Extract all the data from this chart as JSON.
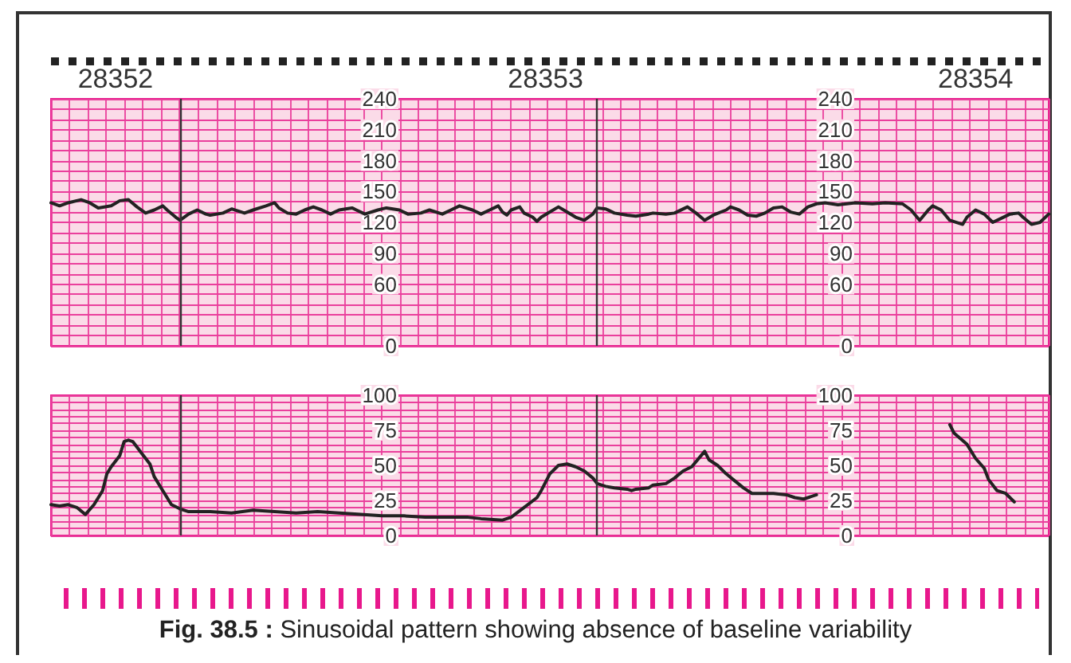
{
  "chart_data": [
    {
      "type": "line",
      "xlim": [
        28351.85,
        28354.17
      ],
      "xticks": [
        28352,
        28353,
        28354
      ],
      "ylim": [
        0,
        240
      ],
      "yticks": [
        0,
        60,
        90,
        120,
        150,
        180,
        210,
        240
      ],
      "y2lim": [
        0,
        240
      ],
      "y2ticks": [
        0,
        60,
        90,
        120,
        150,
        180,
        210,
        240
      ],
      "grid": true,
      "marker": "none",
      "x": [
        28351.85,
        28351.87,
        28351.89,
        28351.92,
        28351.94,
        28351.96,
        28351.99,
        28352.01,
        28352.03,
        28352.05,
        28352.07,
        28352.09,
        28352.11,
        28352.12,
        28352.14,
        28352.15,
        28352.17,
        28352.19,
        28352.21,
        28352.22,
        28352.25,
        28352.27,
        28352.3,
        28352.32,
        28352.35,
        28352.37,
        28352.38,
        28352.4,
        28352.42,
        28352.44,
        28352.46,
        28352.48,
        28352.5,
        28352.52,
        28352.55,
        28352.56,
        28352.58,
        28352.61,
        28352.63,
        28352.66,
        28352.68,
        28352.71,
        28352.73,
        28352.76,
        28352.78,
        28352.8,
        28352.83,
        28352.85,
        28352.87,
        28352.89,
        28352.9,
        28352.91,
        28352.92,
        28352.94,
        28352.95,
        28352.97,
        28352.98,
        28352.99,
        28353.01,
        28353.03,
        28353.05,
        28353.07,
        28353.09,
        28353.11,
        28353.12,
        28353.14,
        28353.16,
        28353.19,
        28353.21,
        28353.24,
        28353.25,
        28353.28,
        28353.3,
        28353.33,
        28353.35,
        28353.37,
        28353.39,
        28353.42,
        28353.43,
        28353.45,
        28353.47,
        28353.49,
        28353.51,
        28353.53,
        28353.55,
        28353.57,
        28353.59,
        28353.61,
        28353.63,
        28353.65,
        28353.68,
        28353.72,
        28353.76,
        28353.79,
        28353.83,
        28353.85,
        28353.87,
        28353.89,
        28353.9,
        28353.92,
        28353.94,
        28353.97,
        28353.98,
        28354.0,
        28354.02,
        28354.04,
        28354.06,
        28354.08,
        28354.1,
        28354.11,
        28354.13,
        28354.15,
        28354.17
      ],
      "series": [
        {
          "color": "#222222",
          "values": [
            139,
            136,
            139,
            142,
            139,
            134,
            136,
            141,
            142,
            135,
            129,
            132,
            136,
            132,
            125,
            122,
            128,
            132,
            128,
            127,
            129,
            133,
            129,
            132,
            136,
            139,
            134,
            129,
            128,
            132,
            135,
            132,
            128,
            132,
            134,
            132,
            128,
            132,
            134,
            132,
            128,
            129,
            132,
            128,
            132,
            136,
            132,
            128,
            132,
            136,
            130,
            127,
            132,
            135,
            129,
            125,
            121,
            125,
            130,
            135,
            130,
            125,
            122,
            128,
            134,
            133,
            129,
            127,
            126,
            128,
            129,
            128,
            129,
            135,
            129,
            122,
            127,
            132,
            135,
            132,
            127,
            126,
            129,
            134,
            135,
            130,
            128,
            135,
            138,
            139,
            137,
            139,
            138,
            139,
            138,
            132,
            122,
            132,
            136,
            132,
            122,
            118,
            125,
            132,
            128,
            120,
            124,
            128,
            129,
            125,
            118,
            120,
            128
          ]
        }
      ],
      "ref_lines": [
        {
          "axis": "x",
          "value": 28352.15,
          "color": "#333333"
        },
        {
          "axis": "x",
          "value": 28353.12,
          "color": "#333333"
        }
      ]
    },
    {
      "type": "line",
      "xlim": [
        28351.85,
        28354.17
      ],
      "ylim": [
        0,
        100
      ],
      "yticks": [
        0,
        25,
        50,
        75,
        100
      ],
      "y2lim": [
        0,
        100
      ],
      "y2ticks": [
        0,
        25,
        50,
        75,
        100
      ],
      "grid": true,
      "marker": "none",
      "tick_labels": "y",
      "x": [
        28351.85,
        28351.87,
        28351.89,
        28351.91,
        28351.93,
        28351.95,
        28351.97,
        28351.98,
        28351.99,
        28352.01,
        28352.02,
        28352.03,
        28352.04,
        28352.06,
        28352.08,
        28352.09,
        28352.11,
        28352.13,
        28352.15,
        28352.17,
        28352.22,
        28352.27,
        28352.32,
        28352.37,
        28352.42,
        28352.47,
        28352.52,
        28352.57,
        28352.62,
        28352.67,
        28352.72,
        28352.77,
        28352.82,
        28352.85,
        28352.9,
        28352.92,
        28352.95,
        28352.98,
        28352.99,
        28353.01,
        28353.03,
        28353.05,
        28353.07,
        28353.09,
        28353.11,
        28353.12,
        28353.14,
        28353.16,
        28353.19,
        28353.2,
        28353.21,
        28353.24,
        28353.25,
        28353.28,
        28353.3,
        28353.32,
        28353.34,
        28353.37,
        28353.38,
        28353.4,
        28353.42,
        28353.44,
        28353.46,
        28353.48,
        28353.51,
        28353.53,
        28353.56,
        28353.58,
        28353.6,
        28353.63,
        28353.8,
        28353.94,
        28353.95,
        28353.98,
        28354.0,
        28354.02,
        28354.03,
        28354.05,
        28354.07,
        28354.08,
        28354.09
      ],
      "series": [
        {
          "color": "#222222",
          "values": [
            22,
            21,
            22,
            20,
            15,
            22,
            32,
            44,
            49,
            57,
            67,
            68,
            67,
            59,
            51,
            42,
            32,
            22,
            19,
            17,
            17,
            16,
            18,
            17,
            16,
            17,
            16,
            15,
            14,
            14,
            13,
            13,
            13,
            12,
            11,
            13,
            20,
            27,
            32,
            44,
            50,
            51,
            49,
            46,
            41,
            37,
            35,
            34,
            33,
            32,
            33,
            34,
            36,
            37,
            41,
            46,
            49,
            60,
            54,
            50,
            44,
            39,
            34,
            30,
            30,
            30,
            29,
            27,
            26,
            29,
            null,
            79,
            73,
            65,
            55,
            48,
            40,
            32,
            30,
            27,
            24
          ]
        }
      ],
      "ref_lines": [
        {
          "axis": "x",
          "value": 28352.15,
          "color": "#333333"
        },
        {
          "axis": "x",
          "value": 28353.12,
          "color": "#333333"
        }
      ],
      "annotations": [
        "Fig. 38.5 : Sinusoidal pattern showing absence of baseline variability"
      ]
    }
  ]
}
